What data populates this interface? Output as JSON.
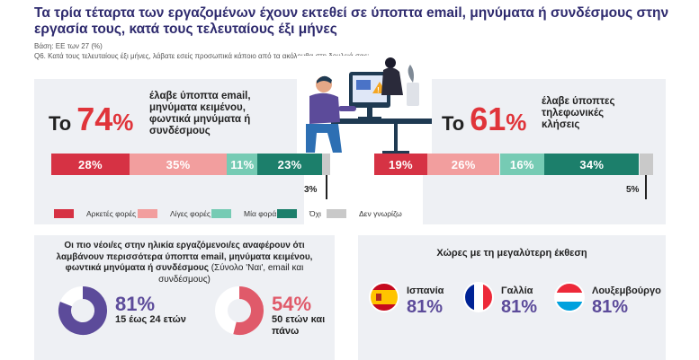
{
  "title": "Τα τρία τέταρτα των εργαζομένων έχουν εκτεθεί σε ύποπτα email, μηνύματα ή συνδέσμους στην εργασία τους, κατά τους τελευταίους έξι μήνες",
  "base_note": "Βάση: ΕΕ των 27 (%)",
  "question_note": "Q6. Κατά τους τελευταίους έξι μήνες, λάβατε εσείς προσωπικά κάποιο από τα ακόλουθα στη δουλειά σας;",
  "left_stat": {
    "prefix": "Το",
    "number": "74",
    "unit": "%",
    "desc": "έλαβε ύποπτα email, μηνύματα κειμένου, φωντικά μηνύματα ή συνδέσμους"
  },
  "right_stat": {
    "prefix": "Το",
    "number": "61",
    "unit": "%",
    "desc": "έλαβε ύποπτες τηλεφωνικές κλήσεις"
  },
  "colors": {
    "often": "#d63244",
    "few": "#f29e9e",
    "once": "#76cbb4",
    "no": "#1c7f6b",
    "dk": "#c9c9c9",
    "accent_red": "#e0343a",
    "purple": "#5c4b9a",
    "title_blue": "#2e2a6e"
  },
  "chart_data": [
    {
      "type": "bar",
      "orientation": "horizontal-stacked",
      "categories": [
        "Αρκετές φορές",
        "Λίγες φορές",
        "Μία φορά",
        "Όχι",
        "Δεν γνωρίζω"
      ],
      "values": [
        28,
        35,
        11,
        23,
        3
      ],
      "labels": [
        "28%",
        "35%",
        "11%",
        "23%",
        "3%"
      ]
    },
    {
      "type": "bar",
      "orientation": "horizontal-stacked",
      "categories": [
        "Αρκετές φορές",
        "Λίγες φορές",
        "Μία φορά",
        "Όχι",
        "Δεν γνωρίζω"
      ],
      "values": [
        19,
        26,
        16,
        34,
        5
      ],
      "labels": [
        "19%",
        "26%",
        "16%",
        "34%",
        "5%"
      ]
    },
    {
      "type": "pie",
      "categories": [
        "15 έως 24 ετών"
      ],
      "values": [
        81
      ],
      "label": "81%"
    },
    {
      "type": "pie",
      "categories": [
        "50 ετών και πάνω"
      ],
      "values": [
        54
      ],
      "label": "54%"
    }
  ],
  "legend": [
    "Αρκετές φορές",
    "Λίγες φορές",
    "Μία φορά",
    "Όχι",
    "Δεν γνωρίζω"
  ],
  "age_panel": {
    "heading_bold": "Οι πιο νέοι/ες στην ηλικία εργαζόμενοι/ες αναφέρουν ότι λαμβάνουν περισσότερα ύποπτα email, μηνύματα κειμένου, φωντικά μηνύματα ή συνδέσμους",
    "heading_note": " (Σύνολο 'Ναι', email και συνδέσμους)",
    "young_pct": "81%",
    "young_label": "15 έως 24 ετών",
    "old_pct": "54%",
    "old_label": "50 ετών και πάνω"
  },
  "country_panel": {
    "heading": "Χώρες με τη μεγαλύτερη έκθεση",
    "countries": [
      {
        "name": "Ισπανία",
        "value": "81%",
        "flag": "spain-flag"
      },
      {
        "name": "Γαλλία",
        "value": "81%",
        "flag": "france-flag"
      },
      {
        "name": "Λουξεμβούργο",
        "value": "81%",
        "flag": "luxembourg-flag"
      }
    ]
  }
}
